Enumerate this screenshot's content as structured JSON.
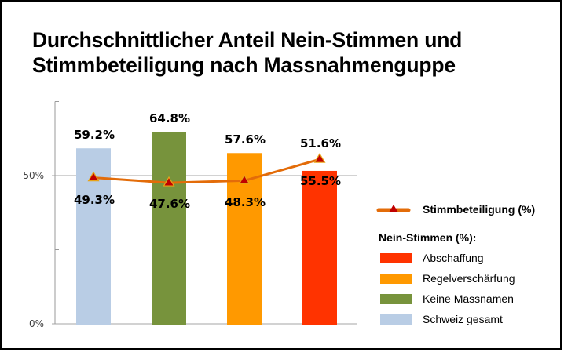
{
  "chart_data": {
    "type": "bar",
    "title_lines": [
      "Durchschnittlicher Anteil Nein-Stimmen und",
      "Stimmbeteiligung nach Massnahmenguppe"
    ],
    "categories": [
      "Schweiz gesamt",
      "Keine Massnamen",
      "Regelverschärfung",
      "Abschaffung"
    ],
    "ylim": [
      0,
      75
    ],
    "y_ticks": [
      {
        "value": 0,
        "label": "0%"
      },
      {
        "value": 50,
        "label": "50%"
      }
    ],
    "minor_ticks": [
      25,
      75
    ],
    "grid": "horizontal at 50%",
    "series": [
      {
        "name": "Nein-Stimmen (%)",
        "kind": "bar",
        "values": [
          59.2,
          64.8,
          57.6,
          51.6
        ],
        "colors": [
          "#b9cde5",
          "#77933c",
          "#ff9900",
          "#ff3300"
        ]
      },
      {
        "name": "Stimmbeteiligung (%)",
        "kind": "line",
        "values": [
          49.3,
          47.6,
          48.3,
          55.5
        ],
        "line_color": "#e36c09",
        "marker_color": "#c00000"
      }
    ],
    "data_labels": {
      "above": [
        "59.2%",
        "64.8%",
        "57.6%",
        "51.6%"
      ],
      "below": [
        "49.3%",
        "47.6%",
        "48.3%",
        "55.5%"
      ]
    },
    "legend": {
      "placement": "right",
      "line_entry": "Stimmbeteiligung (%)",
      "bar_header": "Nein-Stimmen (%):",
      "bar_entries": [
        {
          "label": "Abschaffung",
          "color": "#ff3300"
        },
        {
          "label": "Regelverschärfung",
          "color": "#ff9900"
        },
        {
          "label": "Keine Massnamen",
          "color": "#77933c"
        },
        {
          "label": "Schweiz gesamt",
          "color": "#b9cde5"
        }
      ]
    }
  }
}
